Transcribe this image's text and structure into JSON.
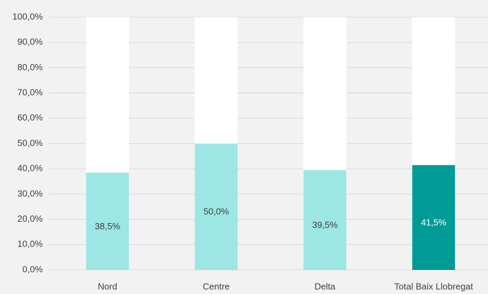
{
  "chart_data": {
    "type": "stacked_bar",
    "categories": [
      "Nord",
      "Centre",
      "Delta",
      "Total Baix Llobregat"
    ],
    "series": [
      {
        "values": [
          38.5,
          50.0,
          39.5,
          41.5
        ],
        "colors": [
          "#9ce6e3",
          "#9ce6e3",
          "#9ce6e3",
          "#009a97"
        ],
        "value_labels": [
          "38,5%",
          "50,0%",
          "39,5%",
          "41,5%"
        ],
        "value_label_colors": [
          "#404040",
          "#404040",
          "#404040",
          "#ffffff"
        ]
      },
      {
        "values": [
          61.5,
          50.0,
          60.5,
          58.5
        ],
        "color": "#ffffff"
      }
    ],
    "ylim": [
      0,
      100
    ],
    "yticks": [
      {
        "value": 0,
        "label": "0,0%"
      },
      {
        "value": 10,
        "label": "10,0%"
      },
      {
        "value": 20,
        "label": "20,0%"
      },
      {
        "value": 30,
        "label": "30,0%"
      },
      {
        "value": 40,
        "label": "40,0%"
      },
      {
        "value": 50,
        "label": "50,0%"
      },
      {
        "value": 60,
        "label": "60,0%"
      },
      {
        "value": 70,
        "label": "70,0%"
      },
      {
        "value": 80,
        "label": "80,0%"
      },
      {
        "value": 90,
        "label": "90,0%"
      },
      {
        "value": 100,
        "label": "100,0%"
      }
    ],
    "grid": true
  }
}
